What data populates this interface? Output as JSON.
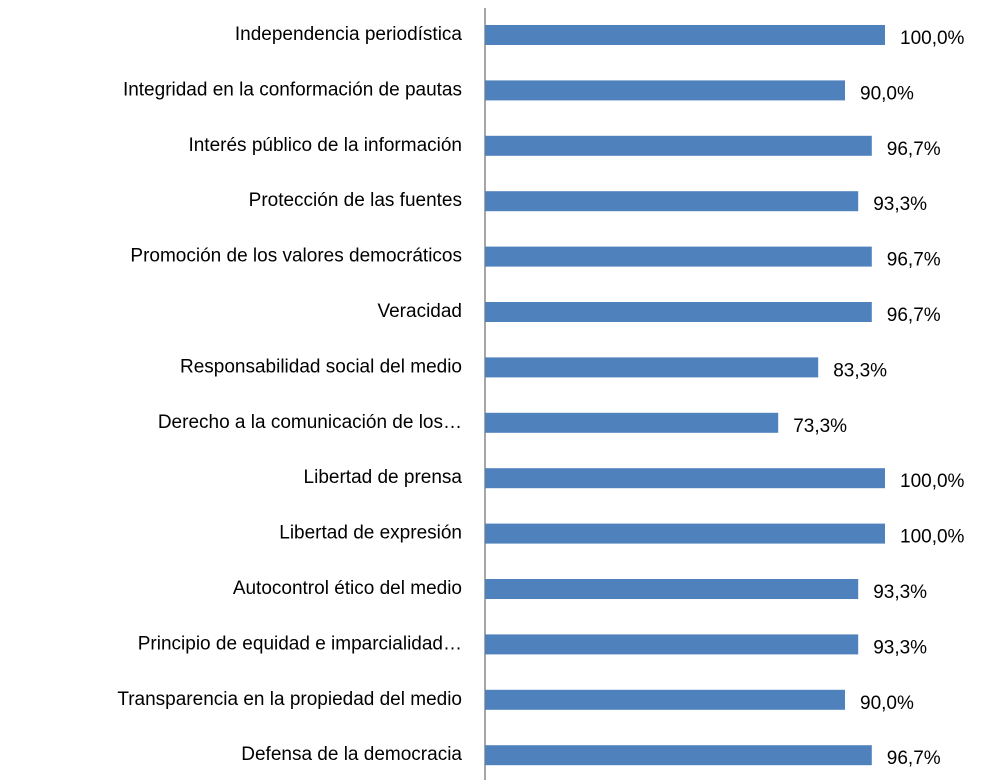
{
  "chart_data": {
    "type": "barh",
    "categories": [
      "Independencia periodística",
      "Integridad en la conformación de pautas",
      "Interés público de la información",
      "Protección de las fuentes",
      "Promoción de los valores democráticos",
      "Veracidad",
      "Responsabilidad social del medio",
      "Derecho a la comunicación de los…",
      "Libertad de prensa",
      "Libertad de expresión",
      "Autocontrol ético del medio",
      "Principio de equidad e imparcialidad…",
      "Transparencia en la propiedad del medio",
      "Defensa de la democracia"
    ],
    "values": [
      100,
      90,
      96.7,
      93.3,
      96.7,
      96.7,
      83.3,
      73.3,
      100,
      100,
      93.3,
      93.3,
      90,
      96.7
    ],
    "value_labels": [
      "100,0%",
      "90,0%",
      "96,7%",
      "93,3%",
      "96,7%",
      "96,7%",
      "83,3%",
      "73,3%",
      "100,0%",
      "100,0%",
      "93,3%",
      "93,3%",
      "90,0%",
      "96,7%"
    ],
    "color": "#4f81bd",
    "xlim": [
      0,
      100
    ]
  }
}
